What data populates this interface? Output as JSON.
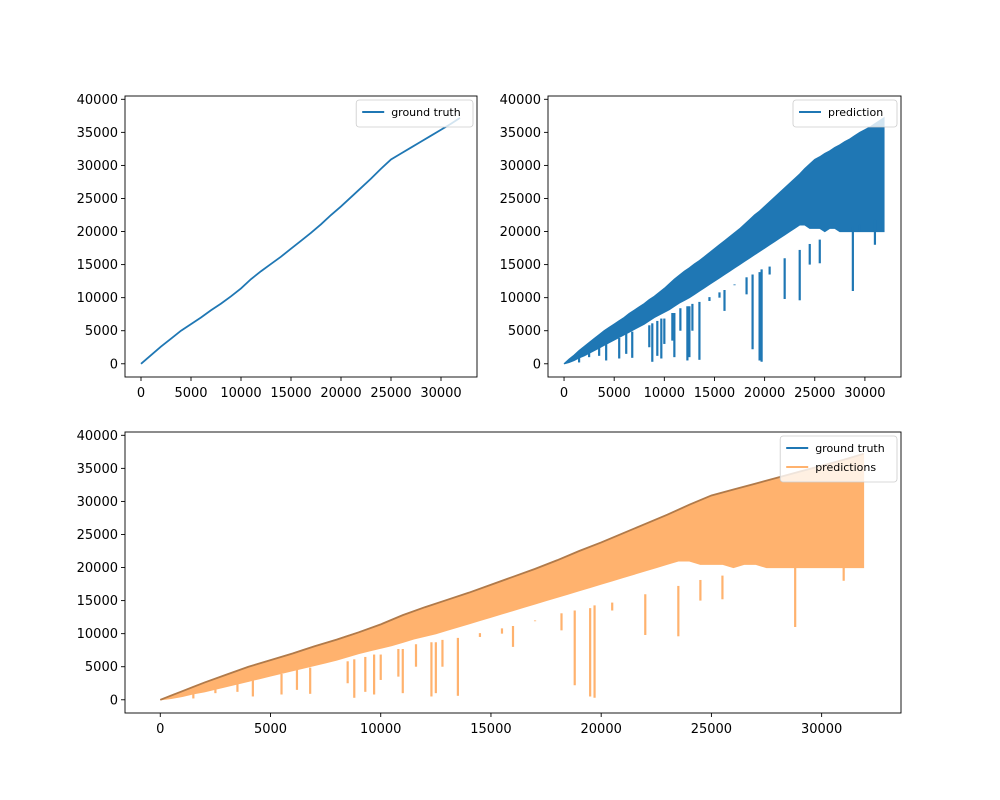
{
  "colors": {
    "ground_truth": "#1f77b4",
    "prediction": "#1f77b4",
    "predictions": "#ffb26e",
    "overlap": "#b07a4a",
    "axes": "#000000",
    "background": "#ffffff"
  },
  "chart_data": [
    {
      "type": "line",
      "panel": "top-left",
      "xlim": [
        -1600,
        33600
      ],
      "ylim": [
        -2000,
        40500
      ],
      "xticks": [
        0,
        5000,
        10000,
        15000,
        20000,
        25000,
        30000
      ],
      "yticks": [
        0,
        5000,
        10000,
        15000,
        20000,
        25000,
        30000,
        35000,
        40000
      ],
      "grid": false,
      "legend": {
        "placement": "upper-right",
        "entries": [
          "ground truth"
        ]
      },
      "series": [
        {
          "name": "ground truth",
          "kind": "line",
          "x": [
            0,
            1000,
            2000,
            3000,
            4000,
            5000,
            6000,
            7000,
            8000,
            9000,
            10000,
            11000,
            12000,
            13000,
            14000,
            15000,
            16000,
            17000,
            18000,
            19000,
            20000,
            21000,
            22000,
            23000,
            24000,
            25000,
            26000,
            27000,
            28000,
            29000,
            30000,
            31000,
            31900
          ],
          "y": [
            0,
            1300,
            2600,
            3800,
            5000,
            6000,
            7000,
            8100,
            9100,
            10200,
            11400,
            12800,
            14000,
            15100,
            16200,
            17400,
            18600,
            19800,
            21100,
            22500,
            23800,
            25200,
            26600,
            28000,
            29500,
            30900,
            31800,
            32700,
            33600,
            34500,
            35400,
            36300,
            37200
          ]
        }
      ]
    },
    {
      "type": "line",
      "panel": "top-right",
      "xlim": [
        -1600,
        33600
      ],
      "ylim": [
        -2000,
        40500
      ],
      "xticks": [
        0,
        5000,
        10000,
        15000,
        20000,
        25000,
        30000
      ],
      "yticks": [
        0,
        5000,
        10000,
        15000,
        20000,
        25000,
        30000,
        35000,
        40000
      ],
      "grid": false,
      "legend": {
        "placement": "upper-right",
        "entries": [
          "prediction"
        ]
      },
      "series": [
        {
          "name": "prediction",
          "kind": "envelope",
          "x": [
            0,
            500,
            1000,
            1500,
            2000,
            2500,
            3000,
            3500,
            4000,
            4500,
            5000,
            5500,
            6000,
            6500,
            7000,
            7500,
            8000,
            8500,
            9000,
            9500,
            10000,
            10500,
            11000,
            11500,
            12000,
            12500,
            13000,
            13500,
            14000,
            14500,
            15000,
            15500,
            16000,
            16500,
            17000,
            17500,
            18000,
            18500,
            19000,
            19500,
            20000,
            20500,
            21000,
            21500,
            22000,
            22500,
            23000,
            23500,
            24000,
            24500,
            25000,
            25500,
            26000,
            26500,
            27000,
            27500,
            28000,
            28500,
            29000,
            29500,
            30000,
            30500,
            31000,
            31500,
            31900
          ],
          "upper": [
            0,
            700,
            1300,
            2000,
            2600,
            3200,
            3800,
            4400,
            5000,
            5500,
            6000,
            6500,
            7000,
            7600,
            8100,
            8600,
            9100,
            9700,
            10200,
            10800,
            11400,
            12100,
            12800,
            13400,
            14000,
            14500,
            15100,
            15600,
            16200,
            16800,
            17400,
            18000,
            18600,
            19200,
            19800,
            20400,
            21100,
            21800,
            22500,
            23100,
            23800,
            24500,
            25200,
            25900,
            26600,
            27300,
            28000,
            28700,
            29500,
            30200,
            30900,
            31300,
            31800,
            32200,
            32700,
            33100,
            33600,
            34000,
            34500,
            35000,
            35400,
            35800,
            36300,
            36800,
            37200
          ],
          "lower": [
            0,
            200,
            500,
            900,
            1200,
            1600,
            2000,
            2400,
            2800,
            3200,
            3600,
            4000,
            4400,
            4800,
            5200,
            5600,
            6000,
            6500,
            7000,
            7400,
            7800,
            8200,
            8700,
            9200,
            9600,
            10000,
            10500,
            11000,
            11500,
            12000,
            12500,
            13000,
            13500,
            14000,
            14500,
            15000,
            15500,
            16000,
            16500,
            17000,
            17500,
            18000,
            18500,
            19000,
            19500,
            20000,
            20500,
            21000,
            21000,
            20500,
            20500,
            20500,
            20000,
            20500,
            20500,
            20000,
            20000,
            20000,
            20000,
            20000,
            20000,
            20000,
            20000,
            20000,
            20000
          ]
        },
        {
          "name": "",
          "kind": "dips",
          "points": [
            [
              1500,
              200
            ],
            [
              2500,
              1000
            ],
            [
              3500,
              1200
            ],
            [
              4200,
              500
            ],
            [
              5500,
              800
            ],
            [
              6200,
              1500
            ],
            [
              6800,
              900
            ],
            [
              8500,
              2500
            ],
            [
              8800,
              300
            ],
            [
              9300,
              1200
            ],
            [
              9700,
              800
            ],
            [
              10000,
              3000
            ],
            [
              10800,
              3500
            ],
            [
              11000,
              1000
            ],
            [
              11600,
              5000
            ],
            [
              12300,
              500
            ],
            [
              12500,
              1000
            ],
            [
              12800,
              5000
            ],
            [
              13500,
              600
            ],
            [
              14500,
              9500
            ],
            [
              15500,
              10000
            ],
            [
              16000,
              8000
            ],
            [
              17000,
              12000
            ],
            [
              18200,
              10500
            ],
            [
              18800,
              2200
            ],
            [
              19500,
              500
            ],
            [
              19700,
              300
            ],
            [
              20500,
              13500
            ],
            [
              22000,
              9800
            ],
            [
              23500,
              9600
            ],
            [
              24500,
              15000
            ],
            [
              25500,
              15200
            ],
            [
              28800,
              11000
            ],
            [
              29500,
              20000
            ],
            [
              31000,
              18000
            ],
            [
              31800,
              20200
            ]
          ]
        }
      ]
    },
    {
      "type": "line",
      "panel": "bottom",
      "xlim": [
        -1600,
        33600
      ],
      "ylim": [
        -2000,
        40500
      ],
      "xticks": [
        0,
        5000,
        10000,
        15000,
        20000,
        25000,
        30000
      ],
      "yticks": [
        0,
        5000,
        10000,
        15000,
        20000,
        25000,
        30000,
        35000,
        40000
      ],
      "grid": false,
      "legend": {
        "placement": "upper-right",
        "entries": [
          "ground truth",
          "predictions"
        ]
      },
      "series": [
        {
          "name": "ground truth",
          "kind": "line",
          "ref": 0
        },
        {
          "name": "predictions",
          "kind": "envelope",
          "ref": 1
        }
      ]
    }
  ]
}
